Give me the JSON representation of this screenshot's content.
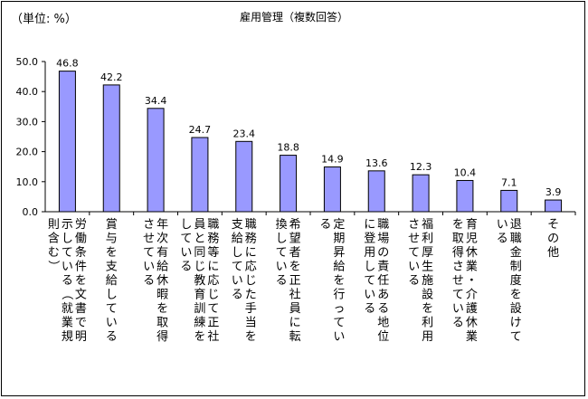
{
  "unit_label": "（単位: %）",
  "chart_data": {
    "type": "bar",
    "title": "雇用管理（複数回答）",
    "xlabel": "",
    "ylabel": "",
    "ylim": [
      0,
      50
    ],
    "yticks": [
      "0.0",
      "10.0",
      "20.0",
      "30.0",
      "40.0",
      "50.0"
    ],
    "grid": false,
    "bar_color": "#9999ff",
    "categories": [
      "労働条件を文書で明示している（就業規則含む）",
      "賞与を支給している",
      "年次有給休暇を取得させている",
      "職務等に応じて正社員と同じ教育訓練をしている",
      "職務に応じた手当を支給している",
      "希望者を正社員に転換している",
      "定期昇給を行っている",
      "職場の責任ある地位に登用している",
      "福利厚生施設を利用させている",
      "育児休業・介護休業を取得させている",
      "退職金制度を設けている",
      "その他"
    ],
    "values": [
      46.8,
      42.2,
      34.4,
      24.7,
      23.4,
      18.8,
      14.9,
      13.6,
      12.3,
      10.4,
      7.1,
      3.9
    ],
    "value_labels": [
      "46.8",
      "42.2",
      "34.4",
      "24.7",
      "23.4",
      "18.8",
      "14.9",
      "13.6",
      "12.3",
      "10.4",
      "7.1",
      "3.9"
    ]
  }
}
